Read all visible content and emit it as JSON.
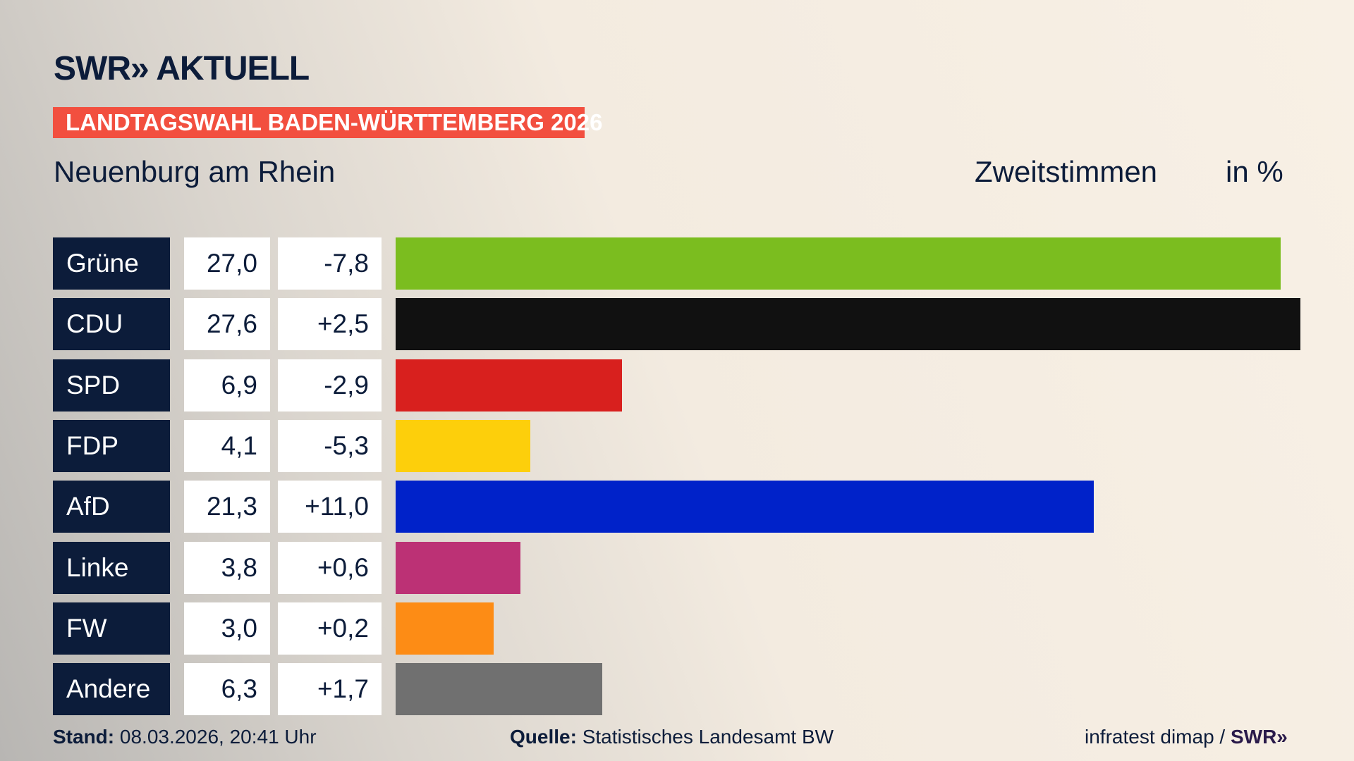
{
  "header": {
    "logo": "SWR» AKTUELL",
    "banner": "LANDTAGSWAHL BADEN-WÜRTTEMBERG 2026",
    "city": "Neuenburg am Rhein",
    "vote_type": "Zweitstimmen",
    "unit": "in %"
  },
  "chart_data": {
    "type": "bar",
    "orientation": "horizontal",
    "categories": [
      "Grüne",
      "CDU",
      "SPD",
      "FDP",
      "AfD",
      "Linke",
      "FW",
      "Andere"
    ],
    "values": [
      27.0,
      27.6,
      6.9,
      4.1,
      21.3,
      3.8,
      3.0,
      6.3
    ],
    "value_labels": [
      "27,0",
      "27,6",
      "6,9",
      "4,1",
      "21,3",
      "3,8",
      "3,0",
      "6,3"
    ],
    "changes": [
      -7.8,
      2.5,
      -2.9,
      -5.3,
      11.0,
      0.6,
      0.2,
      1.7
    ],
    "change_labels": [
      "-7,8",
      "+2,5",
      "-2,9",
      "-5,3",
      "+11,0",
      "+0,6",
      "+0,2",
      "+1,7"
    ],
    "colors": [
      "#7bbd1f",
      "#111111",
      "#d8201e",
      "#fdcf0b",
      "#0022c9",
      "#bc3175",
      "#fd8c15",
      "#707070"
    ]
  },
  "footer": {
    "stand_label": "Stand:",
    "stand_value": "08.03.2026, 20:41 Uhr",
    "source_label": "Quelle:",
    "source_value": "Statistisches Landesamt BW",
    "credit": "infratest dimap / ",
    "credit_logo": "SWR»"
  }
}
